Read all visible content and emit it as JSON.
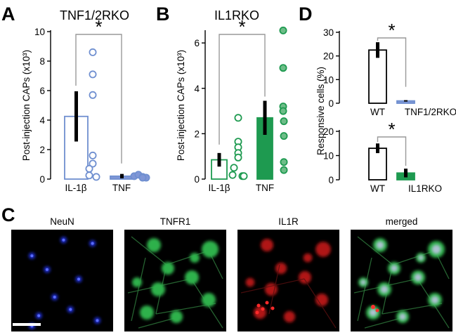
{
  "panels": {
    "A": {
      "letter": "A",
      "title": "TNF1/2RKO"
    },
    "B": {
      "letter": "B",
      "title": "IL1RKO"
    },
    "C": {
      "letter": "C",
      "images": [
        {
          "label": "NeuN",
          "tint": "#3a4cff"
        },
        {
          "label": "TNFR1",
          "tint": "#28c050"
        },
        {
          "label": "IL1R",
          "tint": "#e02020"
        },
        {
          "label": "merged",
          "tint": "#c8c8ff"
        }
      ]
    },
    "D": {
      "letter": "D"
    }
  },
  "significance_mark": "*",
  "chart_data": [
    {
      "type": "bar",
      "panel": "A",
      "title": "TNF1/2RKO",
      "ylabel": "Post-injection CAPs (x10³)",
      "ylim": [
        0,
        10
      ],
      "yticks": [
        "0",
        "2",
        "4",
        "6",
        "8",
        "10"
      ],
      "categories": [
        "IL-1β",
        "TNF"
      ],
      "values": [
        4.25,
        0.2
      ],
      "errors": [
        1.7,
        0.15
      ],
      "points": [
        [
          8.6,
          7.1,
          5.7,
          1.6,
          1.05,
          0.7,
          0.2,
          0.1
        ],
        [
          0.15,
          0.25,
          0.1,
          0.05,
          0.05
        ]
      ],
      "significance": "*",
      "colors": {
        "bar_edge": [
          "#6f8fd0",
          "#6f8fd0"
        ],
        "bar_fill": [
          "#ffffff",
          "#7f96d6"
        ],
        "point_fill": [
          "#ffffff",
          "#7f96d6"
        ]
      }
    },
    {
      "type": "bar",
      "panel": "B",
      "title": "IL1RKO",
      "ylabel": "Post-injection CAPs (x10³)",
      "ylim": [
        0,
        6.5
      ],
      "yticks": [
        "0",
        "2",
        "4",
        "6"
      ],
      "categories": [
        "IL-1β",
        "TNF"
      ],
      "values": [
        0.85,
        2.7
      ],
      "errors": [
        0.3,
        0.75
      ],
      "points": [
        [
          2.7,
          1.65,
          1.4,
          1.15,
          0.95,
          0.5,
          0.15,
          0.1,
          0.1
        ],
        [
          6.55,
          4.9,
          3.2,
          3.0,
          2.55,
          1.9,
          0.75,
          0.4
        ]
      ],
      "significance": "*",
      "colors": {
        "bar_edge": [
          "#1e9a50",
          "#1e9a50"
        ],
        "bar_fill": [
          "#ffffff",
          "#1e9a50"
        ],
        "point_fill": [
          "#ffffff",
          "#6ebd88"
        ]
      }
    },
    {
      "type": "bar",
      "panel": "D-top",
      "ylabel": "Responsive cells (%)",
      "ylim": [
        0,
        30
      ],
      "yticks": [
        "0",
        "10",
        "20",
        "30"
      ],
      "categories": [
        "WT",
        "TNF1/2RKO"
      ],
      "values": [
        22.5,
        1.0
      ],
      "errors": [
        3.3,
        0.3
      ],
      "significance": "*",
      "colors": {
        "bar_edge": [
          "#000000",
          "#6f8fd0"
        ],
        "bar_fill": [
          "#ffffff",
          "#7f96d6"
        ]
      }
    },
    {
      "type": "bar",
      "panel": "D-bottom",
      "ylim": [
        0,
        20
      ],
      "yticks": [
        "0",
        "10",
        "20"
      ],
      "categories": [
        "WT",
        "IL1RKO"
      ],
      "values": [
        13.0,
        2.8
      ],
      "errors": [
        2.0,
        1.8
      ],
      "significance": "*",
      "colors": {
        "bar_edge": [
          "#000000",
          "#1e9a50"
        ],
        "bar_fill": [
          "#ffffff",
          "#1e9a50"
        ]
      }
    }
  ]
}
